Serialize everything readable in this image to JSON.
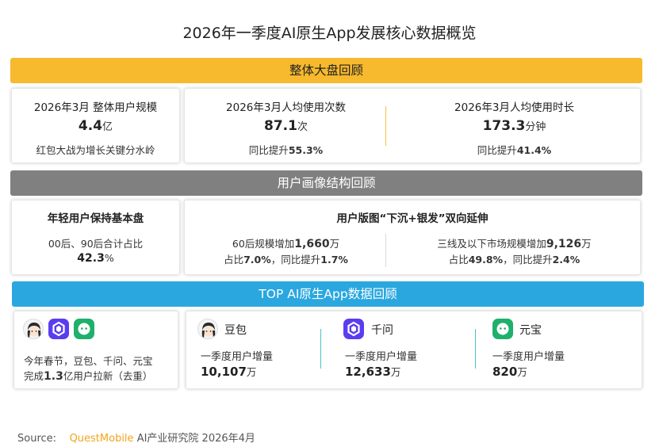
{
  "title": "2026年一季度AI原生App发展核心数据概览",
  "sections": {
    "overall": "整体大盘回顾",
    "profile": "用户画像结构回顾",
    "top_apps": "TOP AI原生App数据回顾"
  },
  "overall": {
    "users": {
      "label": "2026年3月 整体用户规模",
      "value": "4.4",
      "unit": "亿",
      "note": "红包大战为增长关键分水岭"
    },
    "usage_count": {
      "label": "2026年3月人均使用次数",
      "value": "87.1",
      "unit": "次",
      "note_prefix": "同比提升",
      "note_value": "55.3%"
    },
    "usage_time": {
      "label": "2026年3月人均使用时长",
      "value": "173.3",
      "unit": "分钟",
      "note_prefix": "同比提升",
      "note_value": "41.4%"
    }
  },
  "profile": {
    "young": {
      "label": "年轻用户保持基本盘",
      "line1": "00后、90后合计占比",
      "value": "42.3",
      "unit": "%"
    },
    "expansion": {
      "label": "用户版图“下沉+银发”双向延伸",
      "left": {
        "line1_prefix": "60后规模增加",
        "line1_value": "1,660",
        "line1_unit": "万",
        "line2_a": "占比",
        "line2_v1": "7.0%",
        "line2_b": "，同比提升",
        "line2_v2": "1.7%"
      },
      "right": {
        "line1_prefix": "三线及以下市场规模增加",
        "line1_value": "9,126",
        "line1_unit": "万",
        "line2_a": "占比",
        "line2_v1": "49.8%",
        "line2_b": "，同比提升",
        "line2_v2": "2.4%"
      }
    }
  },
  "top_apps": {
    "summary": {
      "line1": "今年春节，豆包、千问、元宝",
      "line2_a": "完成",
      "line2_value": "1.3",
      "line2_b": "亿用户拉新（去重）"
    },
    "apps": [
      {
        "name": "豆包",
        "label": "一季度用户增量",
        "value": "10,107",
        "unit": "万",
        "icon": "doubao-avatar-icon"
      },
      {
        "name": "千问",
        "label": "一季度用户增量",
        "value": "12,633",
        "unit": "万",
        "icon": "qianwen-star-icon"
      },
      {
        "name": "元宝",
        "label": "一季度用户增量",
        "value": "820",
        "unit": "万",
        "icon": "yuanbao-face-icon"
      }
    ]
  },
  "source": {
    "prefix": "Source:",
    "brand": "QuestMobile",
    "rest": "AI产业研究院 2026年4月"
  },
  "colors": {
    "yellow_band": "#f7b92d",
    "gray_band": "#808080",
    "blue_band": "#2aa7df",
    "qianwen": "#5b3df0",
    "yuanbao": "#1fb06b"
  }
}
